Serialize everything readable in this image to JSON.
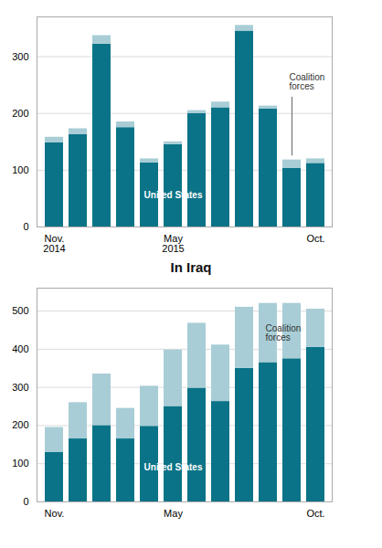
{
  "chart_data": [
    {
      "type": "bar",
      "stacked": true,
      "grid": true,
      "categories": [
        "Nov.\n2014",
        null,
        null,
        null,
        null,
        "May\n2015",
        null,
        null,
        null,
        null,
        null,
        "Oct."
      ],
      "series": [
        {
          "name": "United States",
          "color": "#0a7387",
          "values": [
            148,
            163,
            322,
            175,
            113,
            145,
            200,
            210,
            345,
            208,
            103,
            112
          ]
        },
        {
          "name": "Coalition\nforces",
          "color": "#a8cdd6",
          "values": [
            10,
            10,
            15,
            10,
            7,
            5,
            5,
            10,
            10,
            5,
            15,
            8
          ]
        }
      ],
      "ylim": [
        0,
        370
      ],
      "yticks": [
        0,
        100,
        200,
        300
      ]
    },
    {
      "type": "bar",
      "stacked": true,
      "grid": true,
      "title": "In Iraq",
      "categories": [
        "Nov.",
        null,
        null,
        null,
        null,
        "May",
        null,
        null,
        null,
        null,
        null,
        "Oct."
      ],
      "series": [
        {
          "name": "United States",
          "color": "#0a7387",
          "values": [
            130,
            165,
            200,
            165,
            198,
            250,
            298,
            263,
            350,
            365,
            375,
            405
          ]
        },
        {
          "name": "Coalition\nforces",
          "color": "#a8cdd6",
          "values": [
            65,
            95,
            135,
            80,
            105,
            148,
            170,
            148,
            160,
            155,
            145,
            100
          ]
        }
      ],
      "ylim": [
        0,
        560
      ],
      "yticks": [
        0,
        100,
        200,
        300,
        400,
        500
      ]
    }
  ]
}
